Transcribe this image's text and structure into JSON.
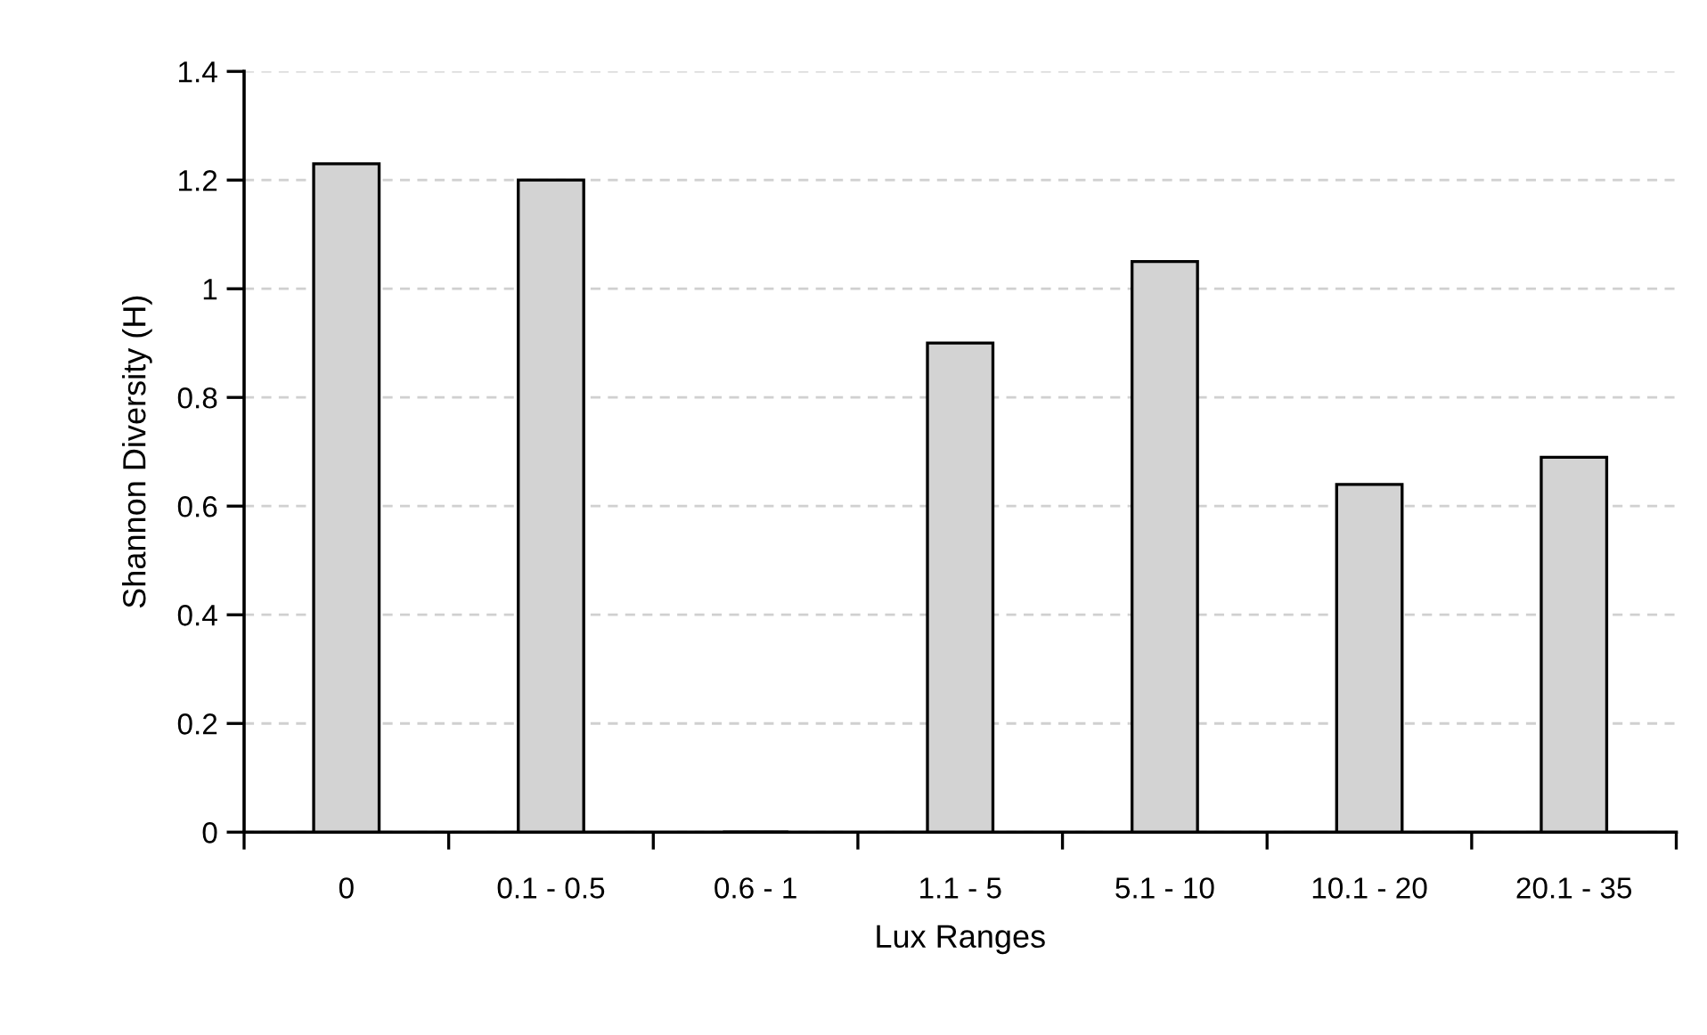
{
  "chart_data": {
    "type": "bar",
    "xlabel": "Lux Ranges",
    "ylabel": "Shannon Diversity (H)",
    "categories": [
      "0",
      "0.1 - 0.5",
      "0.6 - 1",
      "1.1 - 5",
      "5.1 - 10",
      "10.1 - 20",
      "20.1 - 35"
    ],
    "values": [
      1.23,
      1.2,
      0,
      0.9,
      1.05,
      0.64,
      0.69
    ],
    "color": "#d3d3d3",
    "ylim": [
      0,
      1.4
    ],
    "yticks": [
      0,
      0.2,
      0.4,
      0.6,
      0.8,
      1,
      1.2,
      1.4
    ],
    "grid": "y",
    "legend": false
  }
}
